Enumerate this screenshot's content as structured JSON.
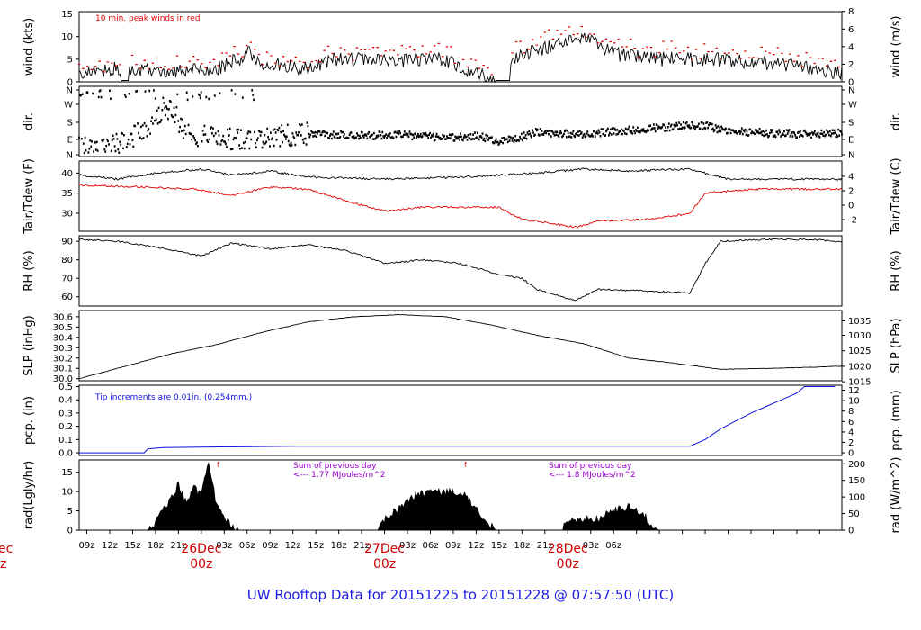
{
  "title": "UW Rooftop Data for 20151225  to  20151228 @ 07:57:50  (UTC)",
  "colors": {
    "black": "#000000",
    "red": "#e00000",
    "blue": "#1010e0",
    "purple": "#9900cc",
    "title": "#1c1ce0"
  },
  "chart_data": [
    {
      "type": "line",
      "name": "wind",
      "ylabel": "wind (kts)",
      "ylabel_right": "wind (m/s)",
      "ylim": [
        0,
        15.5
      ],
      "yticks": [
        0,
        5,
        10,
        15
      ],
      "right_ticks": [
        {
          "label": "0",
          "v": 0
        },
        {
          "label": "2",
          "v": 3.89
        },
        {
          "label": "4",
          "v": 7.78
        },
        {
          "label": "6",
          "v": 11.66
        },
        {
          "label": "8",
          "v": 15.55
        }
      ],
      "annotation": "10 min. peak winds in red",
      "x_hours": [
        0,
        3,
        5,
        6,
        6.2,
        12,
        14,
        18,
        21,
        22,
        24,
        30,
        33,
        36,
        42,
        48,
        50,
        52,
        54,
        56,
        57,
        60,
        65,
        66,
        70,
        72,
        75,
        78,
        84,
        90,
        96,
        99
      ],
      "values": [
        2,
        2.5,
        3,
        0.3,
        2.5,
        2.5,
        2.5,
        3,
        5,
        7,
        4,
        3,
        5,
        5,
        4.5,
        5,
        3,
        2,
        0.5,
        0.3,
        5,
        7,
        9,
        10,
        6,
        6,
        5,
        5,
        5,
        4,
        3,
        2
      ]
    },
    {
      "type": "scatter",
      "name": "dir",
      "ylabel": "dir.",
      "ylabel_right": "dir.",
      "yticks_labels": [
        "N",
        "E",
        "S",
        "W",
        "N"
      ],
      "x_hours": [
        0,
        6,
        10,
        12,
        14,
        20,
        24,
        30,
        36,
        42,
        48,
        52,
        55,
        58,
        60,
        66,
        72,
        78,
        82,
        84,
        90,
        96,
        99
      ],
      "values": [
        60,
        70,
        200,
        250,
        120,
        90,
        100,
        120,
        110,
        115,
        100,
        110,
        80,
        105,
        130,
        120,
        140,
        160,
        165,
        140,
        125,
        120,
        125
      ]
    },
    {
      "type": "line",
      "name": "tair_tdew",
      "ylabel": "Tair/Tdew (F)",
      "ylabel_right": "Tair/Tdew (C)",
      "ylim": [
        25.5,
        43
      ],
      "yticks": [
        30,
        35,
        40
      ],
      "right_ticks": [
        {
          "label": "-2",
          "v": 28.4
        },
        {
          "label": "0",
          "v": 32
        },
        {
          "label": "2",
          "v": 35.6
        },
        {
          "label": "4",
          "v": 39.2
        }
      ],
      "series": [
        {
          "name": "Tair",
          "color": "#000000",
          "x_hours": [
            0,
            5,
            10,
            16,
            20,
            25,
            30,
            40,
            50,
            60,
            66,
            72,
            80,
            85,
            90,
            99
          ],
          "values": [
            39.5,
            38.5,
            40,
            41,
            39.5,
            40.5,
            39,
            38.5,
            39,
            40,
            41,
            40.5,
            41,
            38.5,
            38.5,
            38.5
          ]
        },
        {
          "name": "Tdew",
          "color": "#e00000",
          "x_hours": [
            0,
            8,
            15,
            20,
            25,
            30,
            35,
            40,
            45,
            50,
            55,
            58,
            60,
            65,
            68,
            75,
            80,
            82,
            88,
            99
          ],
          "values": [
            37,
            36.5,
            36,
            34.5,
            36.5,
            36,
            33,
            30.5,
            31.5,
            31.5,
            31.5,
            28.5,
            28,
            26.5,
            28,
            28.5,
            30,
            35,
            36,
            36
          ]
        }
      ]
    },
    {
      "type": "line",
      "name": "rh",
      "ylabel": "RH (%)",
      "ylabel_right": "RH (%)",
      "ylim": [
        55,
        93
      ],
      "yticks": [
        60,
        70,
        80,
        90
      ],
      "x_hours": [
        0,
        5,
        10,
        16,
        20,
        25,
        30,
        35,
        40,
        45,
        50,
        55,
        58,
        60,
        65,
        68,
        75,
        80,
        82,
        84,
        90,
        96,
        99
      ],
      "values": [
        91,
        90,
        87,
        82,
        89,
        86,
        88,
        85,
        78,
        80,
        78,
        72,
        70,
        64,
        58,
        64,
        63,
        62,
        78,
        90,
        91,
        91,
        90
      ]
    },
    {
      "type": "line",
      "name": "slp",
      "ylabel": "SLP (inHg)",
      "ylabel_right": "SLP (hPa)",
      "ylim": [
        29.98,
        30.66
      ],
      "yticks": [
        30.0,
        30.1,
        30.2,
        30.3,
        30.4,
        30.5,
        30.6
      ],
      "right_ticks": [
        {
          "label": "1015",
          "v": 29.97
        },
        {
          "label": "1020",
          "v": 30.12
        },
        {
          "label": "1025",
          "v": 30.27
        },
        {
          "label": "1030",
          "v": 30.42
        },
        {
          "label": "1035",
          "v": 30.56
        }
      ],
      "x_hours": [
        0,
        6,
        12,
        18,
        24,
        30,
        36,
        42,
        48,
        54,
        60,
        66,
        72,
        78,
        84,
        90,
        96,
        99
      ],
      "values": [
        30.0,
        30.12,
        30.24,
        30.33,
        30.45,
        30.55,
        30.6,
        30.62,
        30.6,
        30.52,
        30.42,
        30.34,
        30.2,
        30.15,
        30.09,
        30.1,
        30.11,
        30.12
      ]
    },
    {
      "type": "area",
      "name": "pcp",
      "ylabel": "pcp. (in)",
      "ylabel_right": "pcp. (mm)",
      "ylim": [
        -0.02,
        0.51
      ],
      "yticks": [
        0.0,
        0.1,
        0.2,
        0.3,
        0.4,
        0.5
      ],
      "right_ticks": [
        {
          "label": "0",
          "v": 0
        },
        {
          "label": "2",
          "v": 0.079
        },
        {
          "label": "4",
          "v": 0.157
        },
        {
          "label": "6",
          "v": 0.236
        },
        {
          "label": "8",
          "v": 0.315
        },
        {
          "label": "10",
          "v": 0.394
        },
        {
          "label": "12",
          "v": 0.472
        }
      ],
      "annotation": "Tip increments are 0.01in. (0.254mm.)",
      "x_hours": [
        0,
        8.5,
        9,
        11,
        28,
        80,
        82,
        84,
        86,
        88,
        90,
        92,
        94,
        95,
        99
      ],
      "values": [
        0,
        0,
        0.03,
        0.04,
        0.05,
        0.05,
        0.1,
        0.18,
        0.24,
        0.3,
        0.35,
        0.4,
        0.45,
        0.5,
        0.5
      ]
    },
    {
      "type": "area",
      "name": "rad",
      "ylabel": "rad(Lgly/hr)",
      "ylabel_right": "rad (W/m^2)",
      "ylim": [
        0,
        18.2
      ],
      "yticks": [
        0,
        5,
        10,
        15
      ],
      "right_ticks": [
        {
          "label": "0",
          "v": 0
        },
        {
          "label": "50",
          "v": 4.3
        },
        {
          "label": "100",
          "v": 8.6
        },
        {
          "label": "150",
          "v": 12.9
        },
        {
          "label": "200",
          "v": 17.2
        }
      ],
      "annotations": [
        {
          "line1": "Sum of previous day",
          "line2": "<--- 1.77 MJoules/m^2"
        },
        {
          "line1": "Sum of previous day",
          "line2": "<--- 1.8 MJoules/m^2"
        }
      ],
      "x_hours": [
        0,
        9,
        10,
        11,
        12,
        13,
        14,
        15,
        16,
        17,
        18,
        19,
        20,
        21,
        22,
        39,
        40,
        42,
        44,
        46,
        48,
        50,
        52,
        53,
        54,
        55,
        63,
        64,
        66,
        68,
        70,
        72,
        74,
        75,
        76,
        99
      ],
      "values": [
        0,
        0,
        2,
        5,
        8,
        12,
        7,
        11,
        9,
        18,
        6,
        3,
        1,
        0,
        0,
        0,
        3,
        6,
        9,
        10,
        10,
        10,
        6,
        3,
        1,
        0,
        0,
        2,
        3,
        3,
        5,
        6,
        4,
        1,
        0,
        0
      ]
    }
  ],
  "x_axis": {
    "tick_labels": [
      "09z",
      "12z",
      "15z",
      "18z",
      "21z",
      "03z",
      "06z",
      "09z",
      "12z",
      "15z",
      "18z",
      "21z",
      "03z",
      "06z",
      "09z",
      "12z",
      "15z",
      "18z",
      "21z",
      "03z",
      "06z"
    ],
    "days": [
      {
        "date": "26Dec",
        "time": "00z"
      },
      {
        "date": "27Dec",
        "time": "00z"
      },
      {
        "date": "28Dec",
        "time": "00z"
      }
    ],
    "edge_date": "ec",
    "edge_time": "z"
  }
}
